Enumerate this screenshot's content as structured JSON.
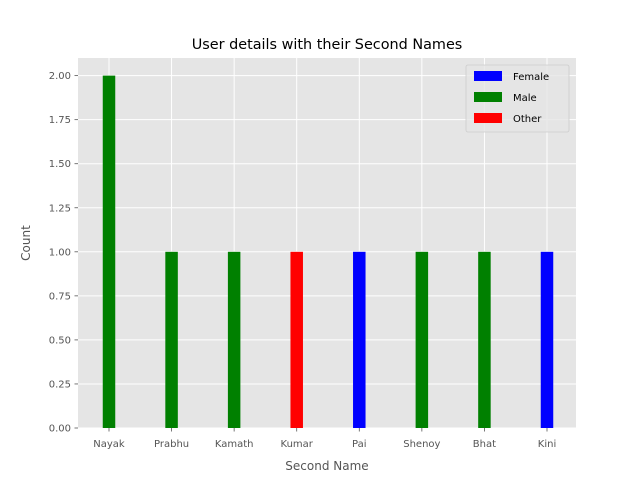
{
  "chart_data": {
    "type": "bar",
    "title": "User details with their Second Names",
    "xlabel": "Second Name",
    "ylabel": "Count",
    "ylim": [
      0,
      2.1
    ],
    "yticks": [
      "0.00",
      "0.25",
      "0.50",
      "0.75",
      "1.00",
      "1.25",
      "1.50",
      "1.75",
      "2.00"
    ],
    "grid": true,
    "legend_position": "top-right",
    "categories": [
      "Nayak",
      "Prabhu",
      "Kamath",
      "Kumar",
      "Pai",
      "Shenoy",
      "Bhat",
      "Kini"
    ],
    "series": [
      {
        "name": "Female",
        "color": "#0000ff",
        "values": [
          0,
          0,
          0,
          0,
          1,
          0,
          0,
          1
        ]
      },
      {
        "name": "Male",
        "color": "#008000",
        "values": [
          2,
          1,
          1,
          0,
          0,
          1,
          1,
          0
        ]
      },
      {
        "name": "Other",
        "color": "#ff0000",
        "values": [
          0,
          0,
          0,
          1,
          0,
          0,
          0,
          0
        ]
      }
    ]
  }
}
